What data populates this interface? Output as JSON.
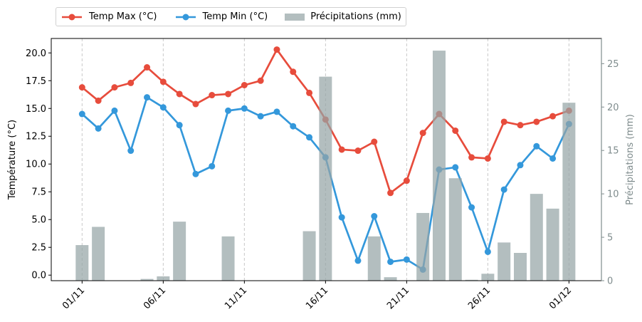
{
  "chart_data": {
    "type": "bar+line",
    "title": "",
    "xlabel": "",
    "ylabel_left": "Température (°C)",
    "ylabel_right": "Précipitations (mm)",
    "x_tick_labels": [
      "01/11",
      "06/11",
      "11/11",
      "16/11",
      "21/11",
      "26/11",
      "01/12"
    ],
    "x_tick_days": [
      1,
      6,
      11,
      16,
      21,
      26,
      31
    ],
    "days": [
      1,
      2,
      3,
      4,
      5,
      6,
      7,
      8,
      9,
      10,
      11,
      12,
      13,
      14,
      15,
      16,
      17,
      18,
      19,
      20,
      21,
      22,
      23,
      24,
      25,
      26,
      27,
      28,
      29,
      30,
      31
    ],
    "xlim": [
      -0.9,
      33
    ],
    "ylim_left": [
      -0.5,
      21.3
    ],
    "ylim_right": [
      0,
      27.9
    ],
    "y_left_ticks": [
      "0.0",
      "2.5",
      "5.0",
      "7.5",
      "10.0",
      "12.5",
      "15.0",
      "17.5",
      "20.0"
    ],
    "y_right_ticks": [
      "0",
      "5",
      "10",
      "15",
      "20",
      "25"
    ],
    "grid": "vertical dashed at x ticks",
    "legend_placement": "top-left above plot",
    "series": [
      {
        "name": "Temp Max (°C)",
        "kind": "line",
        "axis": "left",
        "color": "#e74c3c",
        "values": [
          16.9,
          15.7,
          16.9,
          17.3,
          18.7,
          17.4,
          16.3,
          15.4,
          16.2,
          16.3,
          17.1,
          17.5,
          20.3,
          18.3,
          16.4,
          14.0,
          11.3,
          11.2,
          12.0,
          7.4,
          8.5,
          12.8,
          14.5,
          13.0,
          10.6,
          10.5,
          13.8,
          13.5,
          13.8,
          14.3,
          14.8
        ]
      },
      {
        "name": "Temp Min (°C)",
        "kind": "line",
        "axis": "left",
        "color": "#3498db",
        "values": [
          14.5,
          13.2,
          14.8,
          11.2,
          16.0,
          15.1,
          13.5,
          9.1,
          9.8,
          14.8,
          15.0,
          14.3,
          14.7,
          13.4,
          12.4,
          10.6,
          5.2,
          1.3,
          5.3,
          1.2,
          1.4,
          0.5,
          9.5,
          9.7,
          6.1,
          2.1,
          7.7,
          9.9,
          11.6,
          10.5,
          13.6
        ]
      },
      {
        "name": "Précipitations (mm)",
        "kind": "bar",
        "axis": "right",
        "color": "#95a5a6",
        "values": [
          4.1,
          6.2,
          0,
          0,
          0.2,
          0.5,
          6.8,
          0,
          0,
          5.1,
          0,
          0,
          0,
          0,
          5.7,
          23.5,
          0,
          0,
          5.1,
          0.4,
          0,
          7.8,
          26.5,
          11.8,
          0.1,
          0.8,
          4.4,
          3.2,
          10.0,
          8.3,
          20.5
        ]
      }
    ]
  }
}
